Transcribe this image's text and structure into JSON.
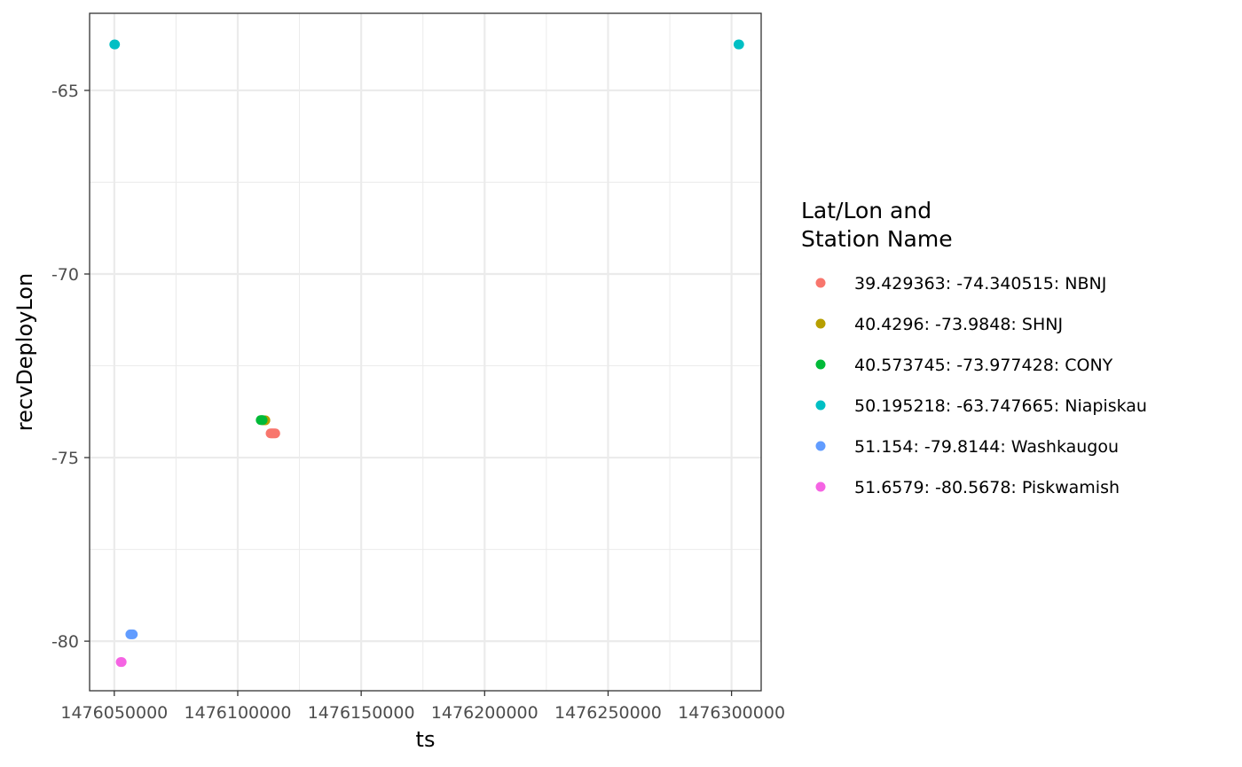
{
  "chart_data": {
    "type": "scatter",
    "xlabel": "ts",
    "ylabel": "recvDeployLon",
    "xlim": [
      1476040000,
      1476312000
    ],
    "ylim": [
      -81.35,
      -62.9
    ],
    "x_ticks": [
      1476050000,
      1476100000,
      1476150000,
      1476200000,
      1476250000,
      1476300000
    ],
    "x_tick_labels": [
      "1476050000",
      "1476100000",
      "1476150000",
      "1476200000",
      "1476250000",
      "1476300000"
    ],
    "y_ticks": [
      -65,
      -70,
      -75,
      -80
    ],
    "y_tick_labels": [
      "-65",
      "-70",
      "-75",
      "-80"
    ],
    "grid": true,
    "legend": {
      "title_lines": [
        "Lat/Lon and",
        "Station Name"
      ],
      "placement": "right"
    },
    "series": [
      {
        "name": "39.429363: -74.340515: NBNJ",
        "color": "#F8766D",
        "x": [
          1476113300,
          1476113800,
          1476114200,
          1476114700,
          1476115200
        ],
        "y": [
          -74.340515,
          -74.340515,
          -74.340515,
          -74.340515,
          -74.340515
        ]
      },
      {
        "name": "40.4296: -73.9848: SHNJ",
        "color": "#B79F00",
        "x": [
          1476110200,
          1476110700,
          1476111200
        ],
        "y": [
          -73.9848,
          -73.9848,
          -73.9848
        ]
      },
      {
        "name": "40.573745: -73.977428: CONY",
        "color": "#00BA38",
        "x": [
          1476109300,
          1476109700,
          1476110100
        ],
        "y": [
          -73.977428,
          -73.977428,
          -73.977428
        ]
      },
      {
        "name": "50.195218: -63.747665: Niapiskau",
        "color": "#00BFC4",
        "x": [
          1476050000,
          1476050300,
          1476302800,
          1476303100
        ],
        "y": [
          -63.747665,
          -63.747665,
          -63.747665,
          -63.747665
        ]
      },
      {
        "name": "51.154: -79.8144: Washkaugou",
        "color": "#619CFF",
        "x": [
          1476056500,
          1476057000,
          1476057500
        ],
        "y": [
          -79.8144,
          -79.8144,
          -79.8144
        ]
      },
      {
        "name": "51.6579: -80.5678: Piskwamish",
        "color": "#F564E3",
        "x": [
          1476052600,
          1476053000
        ],
        "y": [
          -80.5678,
          -80.5678
        ]
      }
    ]
  }
}
